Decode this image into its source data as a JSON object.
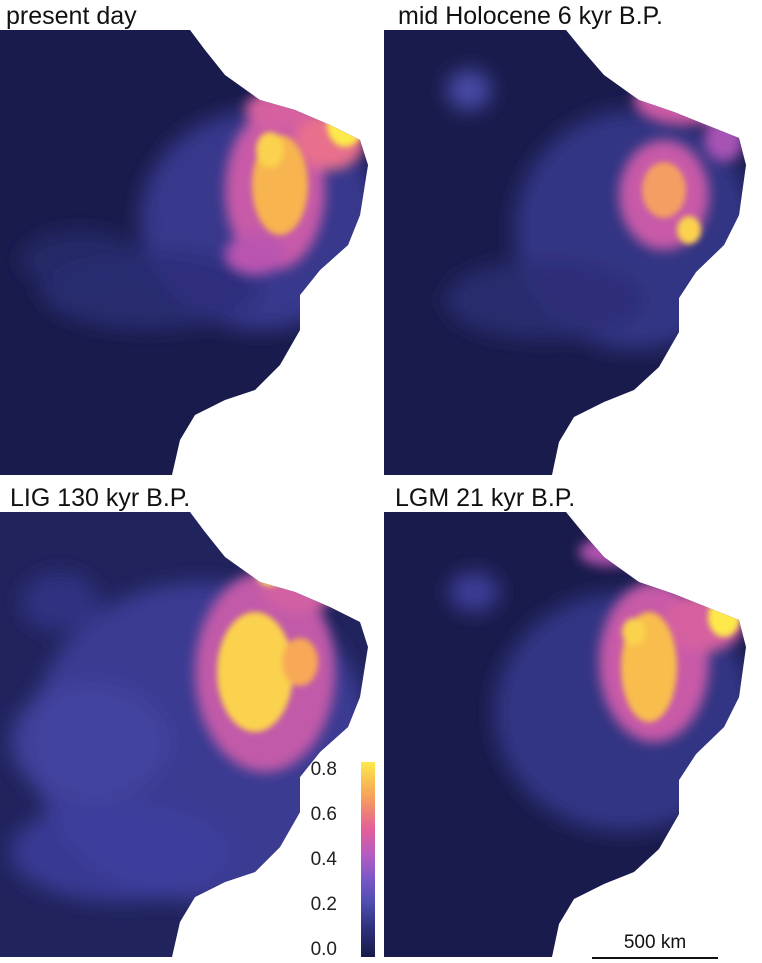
{
  "panels": [
    {
      "title": "present day"
    },
    {
      "title": "mid Holocene 6 kyr B.P."
    },
    {
      "title": "LIG 130 kyr B.P."
    },
    {
      "title": "LGM 21 kyr B.P."
    }
  ],
  "colorbar": {
    "ticks": [
      "0.8",
      "0.6",
      "0.4",
      "0.2",
      "0.0"
    ],
    "min": 0.0,
    "max": 0.85,
    "colors": {
      "low": "#181a48",
      "mid": "#b35bc2",
      "high": "#fde94a"
    }
  },
  "scalebar": {
    "label": "500 km"
  }
}
